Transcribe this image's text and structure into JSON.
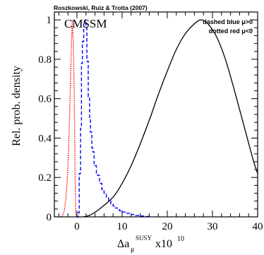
{
  "chart_data": {
    "type": "line",
    "credit": "Roszkowski, Ruiz & Trotta (2007)",
    "model_label": "CMSSM",
    "legend": [
      "dashed blue μ>0",
      "dotted red μ<0"
    ],
    "xlabel": {
      "main": "Δa",
      "sub": "μ",
      "sup": "SUSY",
      "tail": "x10",
      "exp": "10"
    },
    "ylabel": "Rel. prob. density",
    "xlim": [
      -5,
      40
    ],
    "ylim": [
      0,
      1.04
    ],
    "x_ticks": [
      0,
      10,
      20,
      30,
      40
    ],
    "y_ticks": [
      0,
      0.2,
      0.4,
      0.6,
      0.8,
      1
    ],
    "y_tick_labels": [
      "0",
      "0.2",
      "0.4",
      "0.6",
      "0.8",
      "1"
    ],
    "series": [
      {
        "name": "dashed blue μ>0",
        "color": "#0000ff",
        "style": "dashed-step",
        "points": [
          [
            -0.2,
            0
          ],
          [
            0.3,
            0.02
          ],
          [
            0.5,
            0.22
          ],
          [
            0.8,
            0.45
          ],
          [
            1.0,
            0.78
          ],
          [
            1.2,
            0.89
          ],
          [
            1.5,
            0.99
          ],
          [
            1.8,
            1.0
          ],
          [
            2.0,
            0.96
          ],
          [
            2.2,
            0.79
          ],
          [
            2.5,
            0.61
          ],
          [
            2.8,
            0.5
          ],
          [
            3.0,
            0.43
          ],
          [
            3.3,
            0.35
          ],
          [
            3.5,
            0.33
          ],
          [
            3.8,
            0.27
          ],
          [
            4.0,
            0.26
          ],
          [
            4.3,
            0.22
          ],
          [
            4.6,
            0.21
          ],
          [
            5.0,
            0.17
          ],
          [
            5.5,
            0.14
          ],
          [
            6.0,
            0.12
          ],
          [
            6.5,
            0.1
          ],
          [
            7.0,
            0.08
          ],
          [
            7.5,
            0.065
          ],
          [
            8.0,
            0.055
          ],
          [
            8.5,
            0.045
          ],
          [
            9.0,
            0.035
          ],
          [
            9.5,
            0.03
          ],
          [
            10.0,
            0.025
          ],
          [
            11.0,
            0.018
          ],
          [
            12.0,
            0.012
          ],
          [
            13.0,
            0.007
          ],
          [
            14.0,
            0.004
          ],
          [
            15.0,
            0.002
          ],
          [
            16.0,
            0
          ]
        ]
      },
      {
        "name": "dotted red μ<0",
        "color": "#ff0000",
        "style": "dotted",
        "points": [
          [
            -3.3,
            0
          ],
          [
            -2.8,
            0.03
          ],
          [
            -2.4,
            0.1
          ],
          [
            -2.0,
            0.25
          ],
          [
            -1.7,
            0.45
          ],
          [
            -1.4,
            0.7
          ],
          [
            -1.2,
            0.9
          ],
          [
            -1.0,
            1.0
          ],
          [
            -0.8,
            0.88
          ],
          [
            -0.6,
            0.62
          ],
          [
            -0.5,
            0.4
          ],
          [
            -0.4,
            0.2
          ],
          [
            -0.3,
            0.06
          ],
          [
            -0.2,
            0
          ]
        ]
      },
      {
        "name": "solid black",
        "color": "#000000",
        "style": "solid",
        "points": [
          [
            1.5,
            0
          ],
          [
            3,
            0.01
          ],
          [
            5,
            0.04
          ],
          [
            8,
            0.1
          ],
          [
            10,
            0.17
          ],
          [
            12,
            0.26
          ],
          [
            14,
            0.37
          ],
          [
            16,
            0.49
          ],
          [
            18,
            0.62
          ],
          [
            20,
            0.74
          ],
          [
            22,
            0.85
          ],
          [
            24,
            0.93
          ],
          [
            26,
            0.98
          ],
          [
            27.5,
            1.0
          ],
          [
            29,
            0.98
          ],
          [
            31,
            0.91
          ],
          [
            33,
            0.79
          ],
          [
            35,
            0.63
          ],
          [
            37,
            0.46
          ],
          [
            39,
            0.29
          ],
          [
            40,
            0.22
          ]
        ]
      }
    ]
  }
}
